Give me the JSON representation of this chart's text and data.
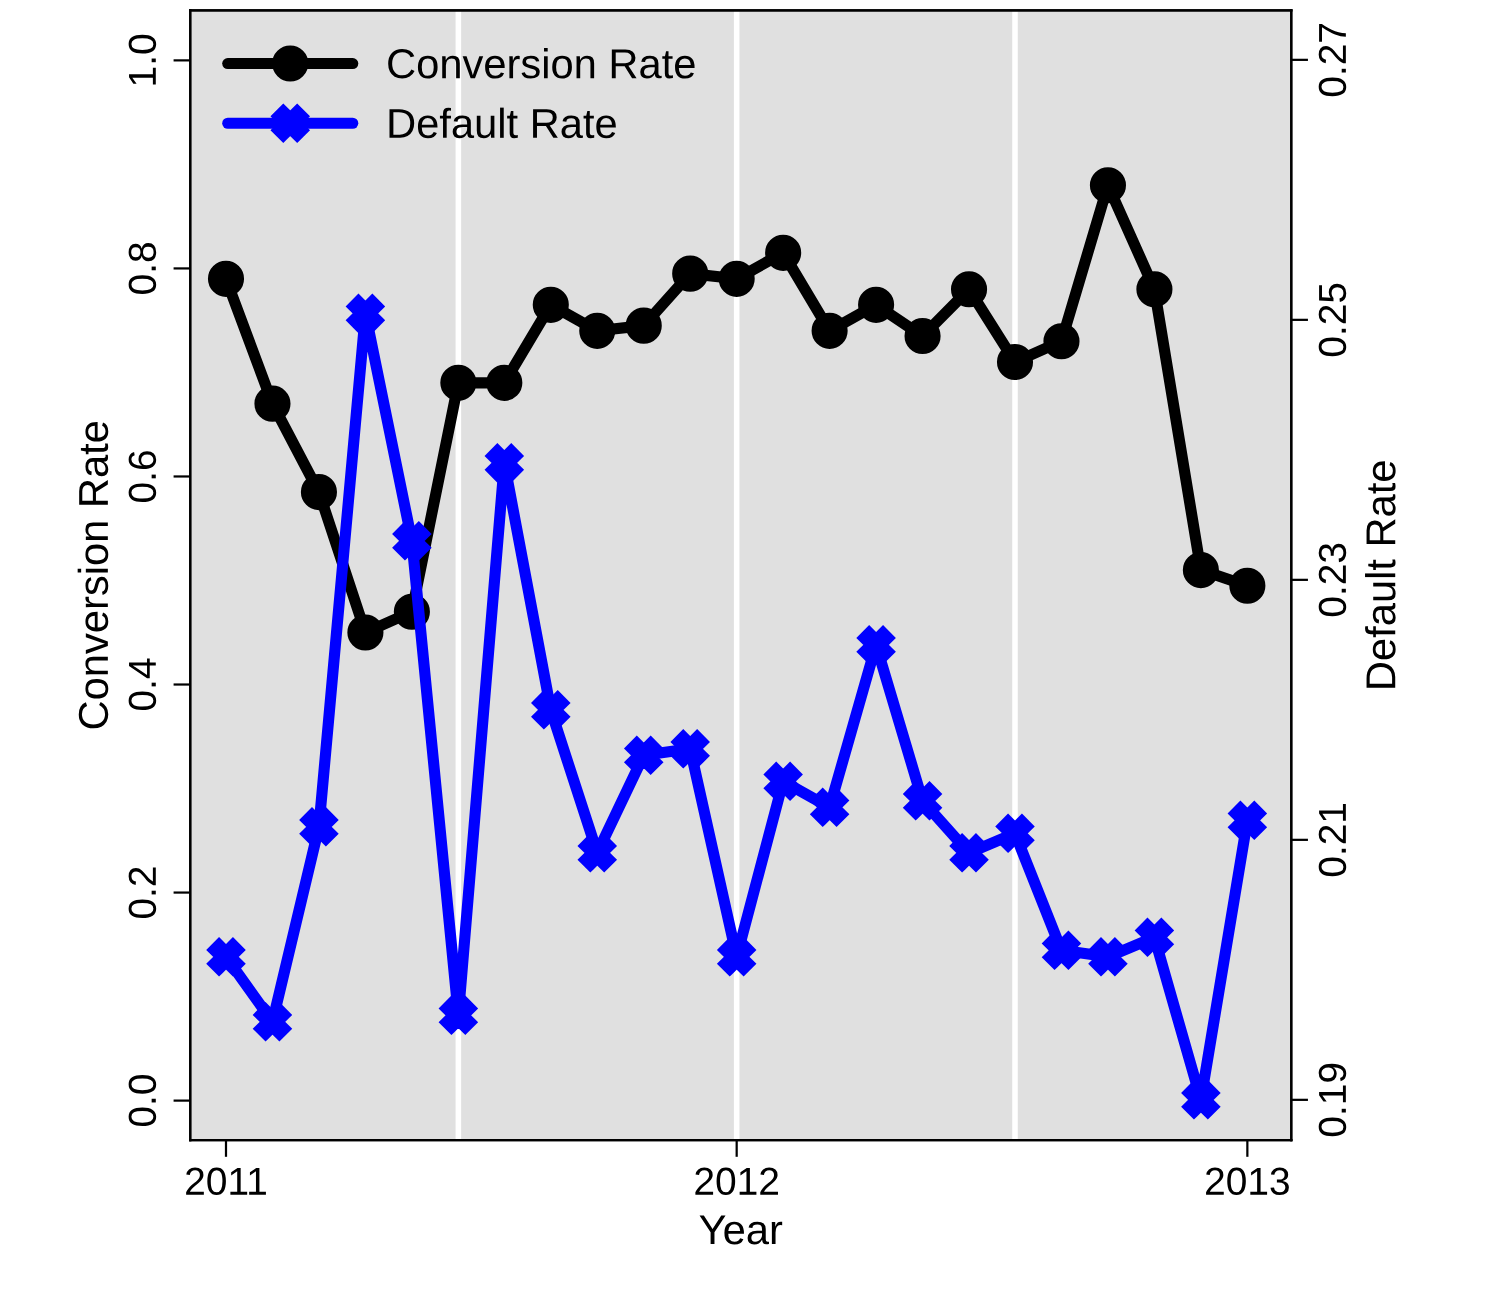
{
  "chart_data": {
    "type": "line",
    "xlabel": "Year",
    "ylabel": "Conversion Rate",
    "y2label": "Default Rate",
    "x": [
      2011.0,
      2011.091,
      2011.182,
      2011.273,
      2011.364,
      2011.455,
      2011.545,
      2011.636,
      2011.727,
      2011.818,
      2011.909,
      2012.0,
      2012.091,
      2012.182,
      2012.273,
      2012.364,
      2012.455,
      2012.545,
      2012.636,
      2012.727,
      2012.818,
      2012.909,
      2013.0
    ],
    "series": [
      {
        "name": "Conversion Rate",
        "color": "#000000",
        "marker": "circle",
        "values": [
          0.79,
          0.67,
          0.585,
          0.45,
          0.47,
          0.69,
          0.69,
          0.765,
          0.74,
          0.745,
          0.795,
          0.79,
          0.815,
          0.74,
          0.765,
          0.735,
          0.78,
          0.71,
          0.73,
          0.88,
          0.78,
          0.51,
          0.495
        ]
      },
      {
        "name": "Default Rate",
        "color": "#0000ff",
        "marker": "cross",
        "axis": "y2",
        "values": [
          0.201,
          0.196,
          0.211,
          0.2505,
          0.233,
          0.1965,
          0.239,
          0.22,
          0.209,
          0.2165,
          0.217,
          0.201,
          0.2145,
          0.2125,
          0.225,
          0.213,
          0.209,
          0.2105,
          0.2015,
          0.201,
          0.2025,
          0.19,
          0.2115
        ]
      }
    ],
    "xlim": [
      2010.93,
      2013.086
    ],
    "xticks": [
      2011,
      2012,
      2013
    ],
    "ylim": [
      -0.038,
      1.048
    ],
    "yticks": [
      {
        "value": 0,
        "label": "0.0"
      },
      0.2,
      0.4,
      0.6,
      0.8,
      {
        "value": 1,
        "label": "1.0"
      }
    ],
    "y2lim": [
      0.1869,
      0.2738
    ],
    "y2ticks": [
      0.19,
      0.21,
      0.23,
      0.25,
      0.27
    ],
    "ref_lines": [
      {
        "axis": "x",
        "value": 2011.455,
        "color": "#ffffff"
      },
      {
        "axis": "x",
        "value": 2012.0,
        "color": "#ffffff"
      },
      {
        "axis": "x",
        "value": 2012.545,
        "color": "#ffffff"
      }
    ],
    "legend": "top left",
    "grid": false,
    "line_style": "solid"
  }
}
